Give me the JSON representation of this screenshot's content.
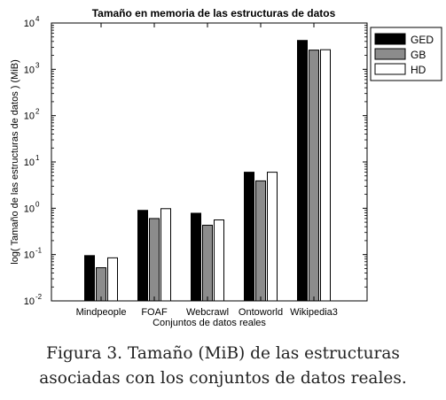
{
  "chart_data": {
    "type": "bar",
    "title": "Tamaño en memoria de las estructuras de datos",
    "xlabel": "Conjuntos de datos reales",
    "ylabel": "log( Tamaño de las estructuras de datos ) (MiB)",
    "yscale": "log",
    "ylim": [
      0.01,
      10000
    ],
    "yticks": [
      {
        "base": "10",
        "exp": "-2"
      },
      {
        "base": "10",
        "exp": "-1"
      },
      {
        "base": "10",
        "exp": "0"
      },
      {
        "base": "10",
        "exp": "1"
      },
      {
        "base": "10",
        "exp": "2"
      },
      {
        "base": "10",
        "exp": "3"
      },
      {
        "base": "10",
        "exp": "4"
      }
    ],
    "categories": [
      "Mindpeople",
      "FOAF",
      "Webcrawl",
      "Ontoworld",
      "Wikipedia3"
    ],
    "series": [
      {
        "name": "GED",
        "color": "#000000",
        "values": [
          0.095,
          0.9,
          0.78,
          6.0,
          4200
        ]
      },
      {
        "name": "GB",
        "color": "#8c8c8c",
        "values": [
          0.052,
          0.6,
          0.43,
          3.9,
          2600
        ]
      },
      {
        "name": "HD",
        "color": "#ffffff",
        "values": [
          0.085,
          0.98,
          0.56,
          6.0,
          2650
        ]
      }
    ],
    "legend_position": "top-right",
    "grid": false
  },
  "caption": {
    "line1": "Figura 3. Tamaño (MiB) de las estructuras",
    "line2": "asociadas con los conjuntos de datos reales."
  }
}
